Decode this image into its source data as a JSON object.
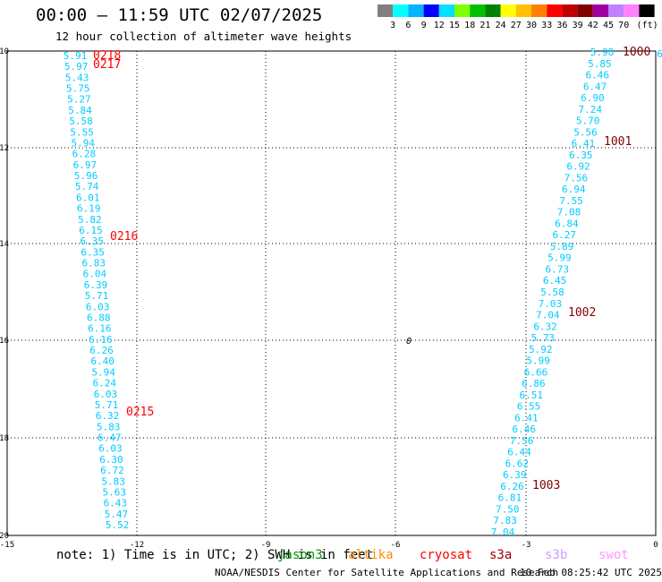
{
  "title": "00:00 — 11:59 UTC 02/07/2025",
  "subtitle": "12 hour collection of altimeter wave heights",
  "legend": {
    "colors": [
      "#808080",
      "#00ffff",
      "#00b4ff",
      "#0000ff",
      "#00e1ff",
      "#80ff00",
      "#00c000",
      "#008000",
      "#ffff00",
      "#ffc000",
      "#ff8000",
      "#ff0000",
      "#c00000",
      "#800000",
      "#a000a0",
      "#c080ff",
      "#ff80ff",
      "#000000"
    ],
    "labels": [
      "3",
      "6",
      "9",
      "12",
      "15",
      "18",
      "21",
      "24",
      "27",
      "30",
      "33",
      "36",
      "39",
      "42",
      "45",
      "70"
    ],
    "unit": "(ft)"
  },
  "axes": {
    "x_ticks": [
      "-15",
      "-12",
      "-9",
      "-6",
      "-3",
      "0"
    ],
    "y_ticks": [
      "-10",
      "-12",
      "-14",
      "-16",
      "-18",
      "-20"
    ]
  },
  "center_marker": "0",
  "west_track": {
    "color": "#00ccff",
    "values": [
      "5.91",
      "5.97",
      "5.43",
      "5.75",
      "5.27",
      "5.84",
      "5.58",
      "5.55",
      "5.94",
      "6.28",
      "6.97",
      "5.96",
      "5.74",
      "6.01",
      "6.19",
      "5.82",
      "6.15",
      "6.35",
      "6.35",
      "6.83",
      "6.04",
      "6.39",
      "5.71",
      "6.03",
      "6.88",
      "6.16",
      "6.16",
      "6.26",
      "6.40",
      "5.94",
      "6.24",
      "6.03",
      "5.71",
      "6.32",
      "5.83",
      "6.47",
      "6.03",
      "6.30",
      "6.72",
      "5.83",
      "5.63",
      "6.43",
      "5.47",
      "5.52"
    ]
  },
  "east_track": {
    "color": "#00ccff",
    "values": [
      "5.98",
      "5.85",
      "6.46",
      "6.47",
      "6.90",
      "7.24",
      "5.70",
      "5.56",
      "6.41",
      "6.35",
      "6.92",
      "7.56",
      "6.94",
      "7.55",
      "7.08",
      "6.84",
      "6.27",
      "5.89",
      "5.99",
      "6.73",
      "6.45",
      "5.58",
      "7.03",
      "7.04",
      "6.32",
      "5.73",
      "5.92",
      "5.99",
      "6.66",
      "6.86",
      "6.51",
      "6.55",
      "6.41",
      "6.46",
      "7.56",
      "6.44",
      "6.62",
      "6.39",
      "6.26",
      "6.81",
      "7.50",
      "7.83",
      "7.04"
    ]
  },
  "west_times": [
    "0218",
    "0217",
    "0216",
    "0215"
  ],
  "east_times": [
    "1000",
    "1001",
    "1002",
    "1003"
  ],
  "edge_label": "6",
  "note": "note: 1) Time is in UTC; 2) SWH is in feet",
  "missions": [
    {
      "name": "jason3",
      "color": "#009600"
    },
    {
      "name": "altika",
      "color": "#ff8c00"
    },
    {
      "name": "cryosat",
      "color": "#ff0000"
    },
    {
      "name": "s3a",
      "color": "#a00000"
    },
    {
      "name": "s3b",
      "color": "#c8a0ff"
    },
    {
      "name": "swot",
      "color": "#ff96ff"
    }
  ],
  "credit": "NOAA/NESDIS Center for Satellite Applications and Research",
  "timestamp": "10 Feb 08:25:42 UTC 2025"
}
